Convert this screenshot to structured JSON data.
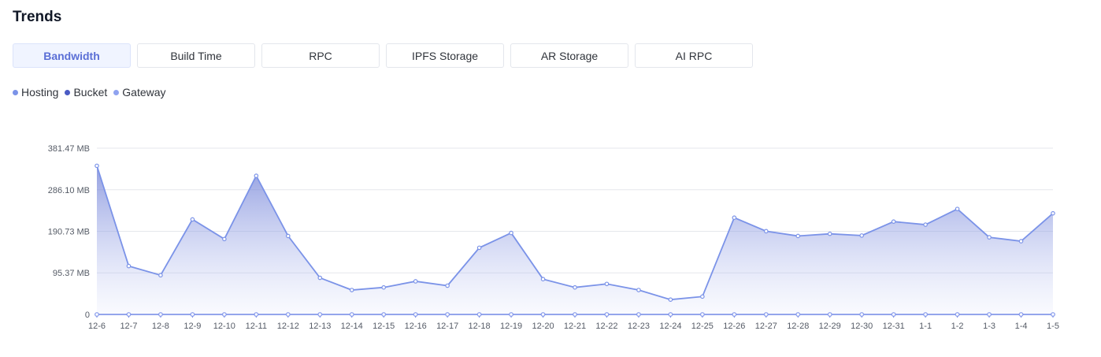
{
  "header": {
    "title": "Trends"
  },
  "tabs": [
    {
      "label": "Bandwidth",
      "active": true
    },
    {
      "label": "Build Time",
      "active": false
    },
    {
      "label": "RPC",
      "active": false
    },
    {
      "label": "IPFS Storage",
      "active": false
    },
    {
      "label": "AR Storage",
      "active": false
    },
    {
      "label": "AI RPC",
      "active": false
    }
  ],
  "chart_data": {
    "type": "area",
    "unit": "MB",
    "ylim": [
      0,
      381.47
    ],
    "yticks": [
      0,
      95.37,
      190.73,
      286.1,
      381.47
    ],
    "ytick_labels": [
      "0",
      "95.37 MB",
      "190.73 MB",
      "286.10 MB",
      "381.47 MB"
    ],
    "grid": true,
    "legend": "top-left",
    "categories": [
      "12-6",
      "12-7",
      "12-8",
      "12-9",
      "12-10",
      "12-11",
      "12-12",
      "12-13",
      "12-14",
      "12-15",
      "12-16",
      "12-17",
      "12-18",
      "12-19",
      "12-20",
      "12-21",
      "12-22",
      "12-23",
      "12-24",
      "12-25",
      "12-26",
      "12-27",
      "12-28",
      "12-29",
      "12-30",
      "12-31",
      "1-1",
      "1-2",
      "1-3",
      "1-4",
      "1-5"
    ],
    "series": [
      {
        "name": "Hosting",
        "color": "#7b93e8",
        "values": [
          341,
          111,
          90,
          218,
          173,
          318,
          180,
          84,
          56,
          62,
          76,
          66,
          153,
          187,
          81,
          62,
          70,
          56,
          34,
          41,
          222,
          191,
          180,
          185,
          181,
          213,
          206,
          242,
          177,
          168,
          232
        ]
      },
      {
        "name": "Bucket",
        "color": "#4a5bc4",
        "values": [
          0,
          0,
          0,
          0,
          0,
          0,
          0,
          0,
          0,
          0,
          0,
          0,
          0,
          0,
          0,
          0,
          0,
          0,
          0,
          0,
          0,
          0,
          0,
          0,
          0,
          0,
          0,
          0,
          0,
          0,
          0
        ]
      },
      {
        "name": "Gateway",
        "color": "#8fa3f0",
        "values": [
          0,
          0,
          0,
          0,
          0,
          0,
          0,
          0,
          0,
          0,
          0,
          0,
          0,
          0,
          0,
          0,
          0,
          0,
          0,
          0,
          0,
          0,
          0,
          0,
          0,
          0,
          0,
          0,
          0,
          0,
          0
        ]
      }
    ]
  }
}
